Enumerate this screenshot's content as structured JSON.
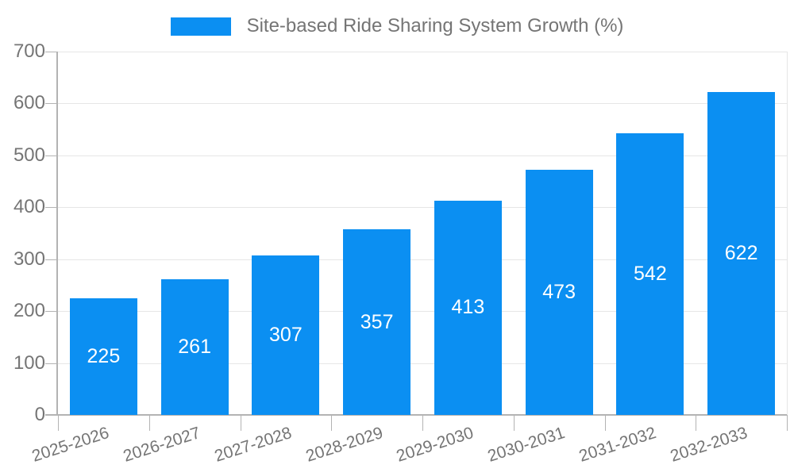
{
  "chart_data": {
    "type": "bar",
    "title": "Site-based Ride Sharing System Growth (%)",
    "series_name": "Site-based Ride Sharing System Growth (%)",
    "categories": [
      "2025-2026",
      "2026-2027",
      "2027-2028",
      "2028-2029",
      "2029-2030",
      "2030-2031",
      "2031-2032",
      "2032-2033"
    ],
    "values": [
      225,
      261,
      307,
      357,
      413,
      473,
      542,
      622
    ],
    "xlabel": "",
    "ylabel": "",
    "ylim": [
      0,
      700
    ],
    "yticks": [
      0,
      100,
      200,
      300,
      400,
      500,
      600,
      700
    ],
    "grid": true,
    "legend_position": "top",
    "value_labels": "inside-center",
    "colors": {
      "bar": "#0b8ff2",
      "value_text": "#ffffff",
      "axis_text": "#757575",
      "gridline": "#e6e6e6",
      "axis_line": "#b3b3b3"
    }
  }
}
